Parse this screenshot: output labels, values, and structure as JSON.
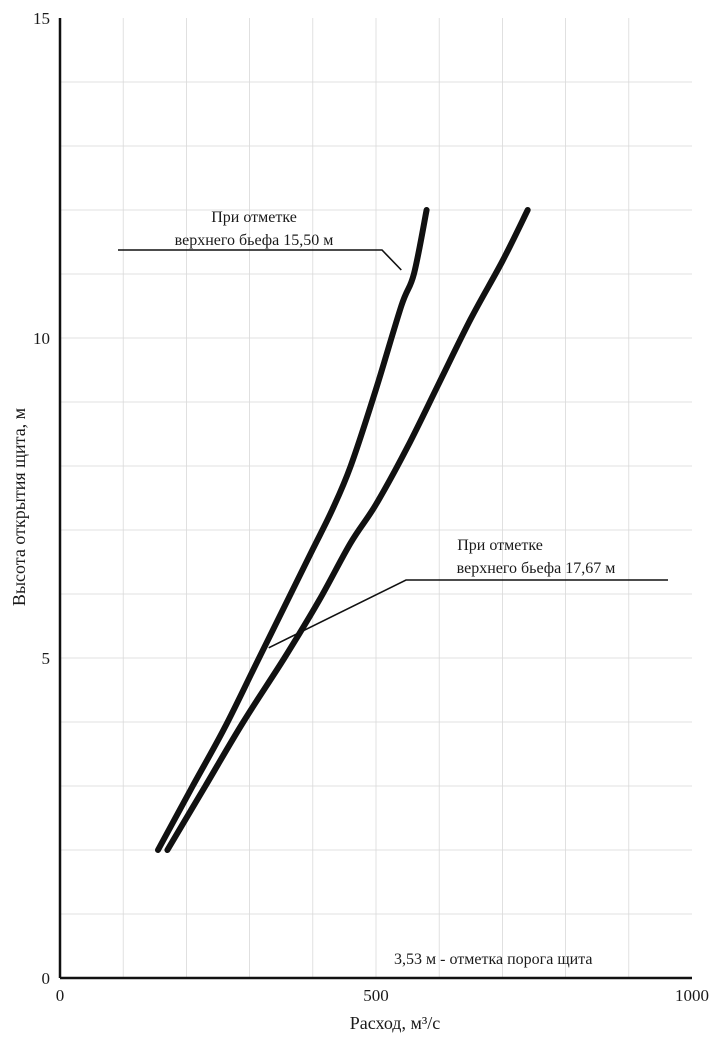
{
  "chart_data": {
    "type": "line",
    "title": "",
    "xlabel": "Расход, м³/с",
    "ylabel": "Высота открытия щита, м",
    "xlim": [
      0,
      1000
    ],
    "ylim": [
      0,
      15
    ],
    "x_ticks": [
      "0",
      "500",
      "1000"
    ],
    "y_ticks": [
      "0",
      "5",
      "10",
      "15"
    ],
    "x_tick_values": [
      0,
      500,
      1000
    ],
    "y_tick_values": [
      0,
      5,
      10,
      15
    ],
    "grid": true,
    "series": [
      {
        "name": "При отметке верхнего бьефа 15,50 м",
        "label_lines": [
          "При отметке",
          "верхнего бьефа 15,50 м"
        ],
        "x": [
          155,
          210,
          260,
          310,
          360,
          400,
          430,
          460,
          500,
          540,
          560,
          580
        ],
        "y": [
          2,
          3,
          3.9,
          4.9,
          5.9,
          6.7,
          7.3,
          8,
          9.2,
          10.5,
          11,
          12
        ]
      },
      {
        "name": "При отметке верхнего бьефа 17,67 м",
        "label_lines": [
          "При отметке",
          "верхнего бьефа 17,67 м"
        ],
        "x": [
          170,
          230,
          290,
          355,
          410,
          460,
          500,
          550,
          600,
          650,
          700,
          740
        ],
        "y": [
          2,
          3,
          4,
          5,
          5.9,
          6.8,
          7.4,
          8.3,
          9.3,
          10.3,
          11.2,
          12
        ]
      }
    ],
    "annotations": [
      {
        "text": "3,53   м - отметка порога щита"
      }
    ]
  }
}
